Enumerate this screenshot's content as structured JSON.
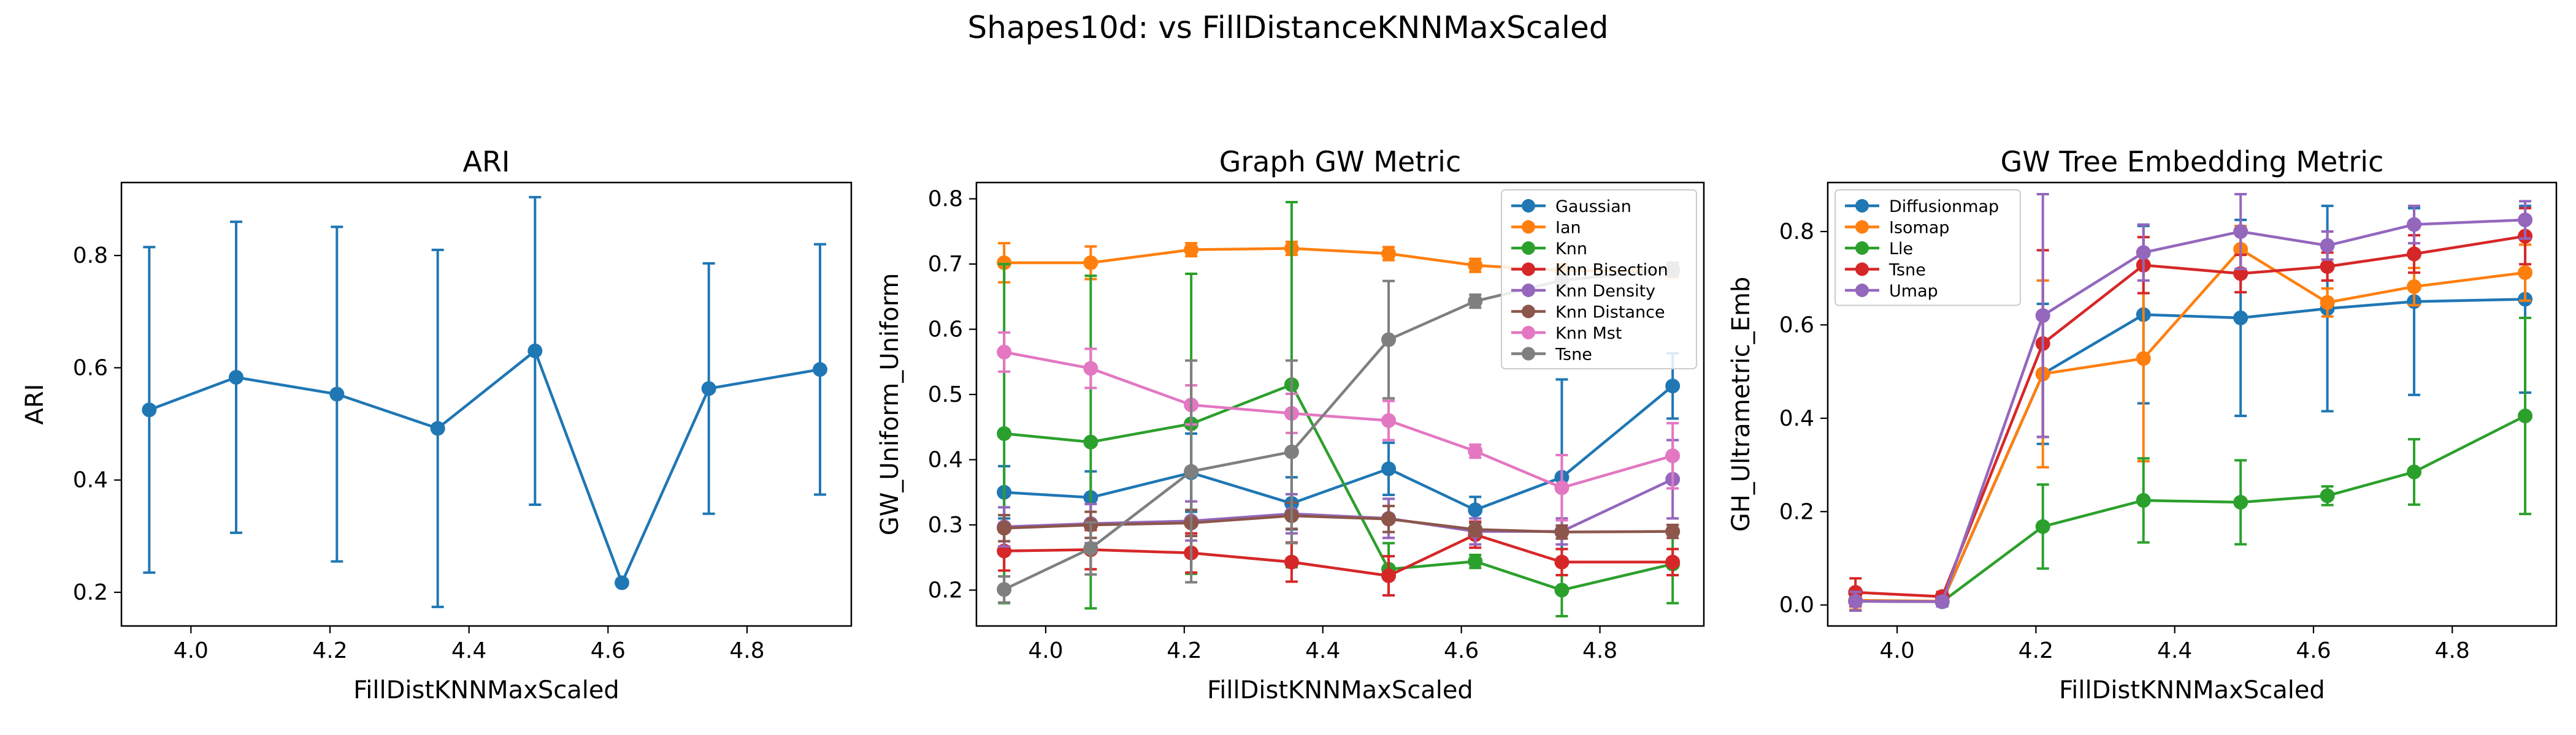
{
  "figure": {
    "title": "Shapes10d: vs FillDistanceKNNMaxScaled"
  },
  "chart_data": [
    {
      "type": "line",
      "title": "ARI",
      "xlabel": "FillDistKNNMaxScaled",
      "ylabel": "ARI",
      "xlim": [
        3.9,
        4.95
      ],
      "ylim": [
        0.14,
        0.93
      ],
      "xticks": [
        4.0,
        4.2,
        4.4,
        4.6,
        4.8
      ],
      "yticks": [
        0.2,
        0.4,
        0.6,
        0.8
      ],
      "legend": null,
      "x": [
        3.94,
        4.065,
        4.21,
        4.355,
        4.495,
        4.62,
        4.745,
        4.905
      ],
      "series": [
        {
          "name": "",
          "color": "#1f77b4",
          "values": [
            0.525,
            0.583,
            0.553,
            0.492,
            0.63,
            0.217,
            0.563,
            0.597
          ],
          "err": [
            0.29,
            0.277,
            0.298,
            0.318,
            0.274,
            0.0,
            0.223,
            0.223
          ]
        }
      ]
    },
    {
      "type": "line",
      "title": "Graph GW Metric",
      "xlabel": "FillDistKNNMaxScaled",
      "ylabel": "GW_Uniform_Uniform",
      "xlim": [
        3.9,
        4.95
      ],
      "ylim": [
        0.145,
        0.825
      ],
      "xticks": [
        4.0,
        4.2,
        4.4,
        4.6,
        4.8
      ],
      "yticks": [
        0.2,
        0.3,
        0.4,
        0.5,
        0.6,
        0.7,
        0.8
      ],
      "legend": "top-right",
      "x": [
        3.94,
        4.065,
        4.21,
        4.355,
        4.495,
        4.62,
        4.745,
        4.905
      ],
      "series": [
        {
          "name": "Gaussian",
          "color": "#1f77b4",
          "values": [
            0.35,
            0.342,
            0.38,
            0.333,
            0.386,
            0.323,
            0.373,
            0.513
          ],
          "err": [
            0.04,
            0.04,
            0.06,
            0.04,
            0.04,
            0.02,
            0.15,
            0.05
          ]
        },
        {
          "name": "Ian",
          "color": "#ff7f0e",
          "values": [
            0.702,
            0.702,
            0.722,
            0.724,
            0.716,
            0.698,
            0.69,
            0.69
          ],
          "err": [
            0.03,
            0.025,
            0.01,
            0.01,
            0.01,
            0.01,
            0.01,
            0.01
          ]
        },
        {
          "name": "Knn",
          "color": "#2ca02c",
          "values": [
            0.44,
            0.427,
            0.455,
            0.515,
            0.232,
            0.244,
            0.2,
            0.24
          ],
          "err": [
            0.26,
            0.255,
            0.23,
            0.28,
            0.04,
            0.01,
            0.04,
            0.06
          ]
        },
        {
          "name": "Knn Bisection",
          "color": "#d62728",
          "values": [
            0.26,
            0.262,
            0.257,
            0.243,
            0.222,
            0.285,
            0.243,
            0.243
          ],
          "err": [
            0.03,
            0.03,
            0.03,
            0.03,
            0.03,
            0.02,
            0.02,
            0.02
          ]
        },
        {
          "name": "Knn Density",
          "color": "#9467bd",
          "values": [
            0.297,
            0.302,
            0.306,
            0.317,
            0.31,
            0.29,
            0.29,
            0.37
          ],
          "err": [
            0.03,
            0.03,
            0.03,
            0.03,
            0.03,
            0.02,
            0.02,
            0.06
          ]
        },
        {
          "name": "Knn Distance",
          "color": "#8c564b",
          "values": [
            0.295,
            0.3,
            0.303,
            0.314,
            0.309,
            0.293,
            0.289,
            0.29
          ],
          "err": [
            0.02,
            0.02,
            0.02,
            0.02,
            0.02,
            0.01,
            0.01,
            0.01
          ]
        },
        {
          "name": "Knn Mst",
          "color": "#e377c2",
          "values": [
            0.565,
            0.54,
            0.484,
            0.471,
            0.46,
            0.413,
            0.357,
            0.406
          ],
          "err": [
            0.03,
            0.03,
            0.03,
            0.03,
            0.03,
            0.01,
            0.05,
            0.05
          ]
        },
        {
          "name": "Tsne",
          "color": "#7f7f7f",
          "values": [
            0.201,
            0.264,
            0.382,
            0.412,
            0.584,
            0.643,
            0.675,
            0.692
          ],
          "err": [
            0.02,
            0.04,
            0.17,
            0.14,
            0.09,
            0.01,
            0.01,
            0.01
          ]
        }
      ]
    },
    {
      "type": "line",
      "title": "GW Tree Embedding Metric",
      "xlabel": "FillDistKNNMaxScaled",
      "ylabel": "GH_Ultrametric_Emb",
      "xlim": [
        3.9,
        4.95
      ],
      "ylim": [
        -0.045,
        0.905
      ],
      "xticks": [
        4.0,
        4.2,
        4.4,
        4.6,
        4.8
      ],
      "yticks": [
        0.0,
        0.2,
        0.4,
        0.6,
        0.8
      ],
      "legend": "top-left",
      "x": [
        3.94,
        4.065,
        4.21,
        4.355,
        4.495,
        4.62,
        4.745,
        4.905
      ],
      "series": [
        {
          "name": "Diffusionmap",
          "color": "#1f77b4",
          "values": [
            0.008,
            0.007,
            0.495,
            0.622,
            0.615,
            0.635,
            0.65,
            0.655
          ],
          "err": [
            0.02,
            0.01,
            0.15,
            0.19,
            0.21,
            0.22,
            0.2,
            0.2
          ]
        },
        {
          "name": "Isomap",
          "color": "#ff7f0e",
          "values": [
            0.01,
            0.008,
            0.495,
            0.528,
            0.762,
            0.648,
            0.682,
            0.712
          ],
          "err": [
            0.02,
            0.01,
            0.2,
            0.22,
            0.05,
            0.03,
            0.04,
            0.06
          ]
        },
        {
          "name": "Lle",
          "color": "#2ca02c",
          "values": [
            0.008,
            0.007,
            0.168,
            0.224,
            0.22,
            0.234,
            0.285,
            0.405
          ],
          "err": [
            0.02,
            0.01,
            0.09,
            0.09,
            0.09,
            0.02,
            0.07,
            0.21
          ]
        },
        {
          "name": "Tsne",
          "color": "#d62728",
          "values": [
            0.027,
            0.018,
            0.56,
            0.728,
            0.71,
            0.725,
            0.752,
            0.79
          ],
          "err": [
            0.03,
            0.01,
            0.2,
            0.06,
            0.04,
            0.03,
            0.04,
            0.06
          ]
        },
        {
          "name": "Umap",
          "color": "#9467bd",
          "values": [
            0.008,
            0.007,
            0.62,
            0.755,
            0.8,
            0.77,
            0.815,
            0.825
          ],
          "err": [
            0.02,
            0.01,
            0.26,
            0.06,
            0.08,
            0.03,
            0.04,
            0.04
          ]
        }
      ]
    }
  ]
}
